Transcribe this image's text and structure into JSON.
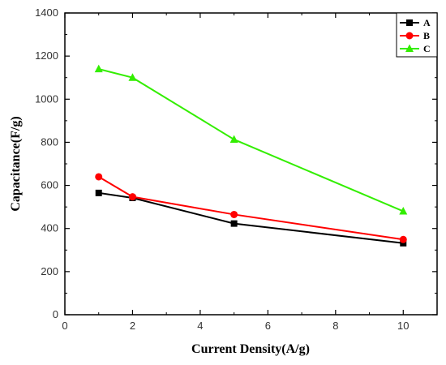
{
  "chart_data": {
    "type": "line",
    "title": "",
    "xlabel": "Current Density(A/g)",
    "ylabel": "Capacitance(F/g)",
    "xlim": [
      0,
      11
    ],
    "ylim": [
      0,
      1400
    ],
    "xticks": [
      0,
      2,
      4,
      6,
      8,
      10
    ],
    "yticks": [
      0,
      200,
      400,
      600,
      800,
      1000,
      1200,
      1400
    ],
    "grid": false,
    "legend_position": "top-right",
    "series": [
      {
        "name": "A",
        "color": "#000000",
        "marker": "square",
        "x": [
          1,
          2,
          5,
          10
        ],
        "y": [
          565,
          542,
          423,
          332
        ]
      },
      {
        "name": "B",
        "color": "#ff0000",
        "marker": "circle",
        "x": [
          1,
          2,
          5,
          10
        ],
        "y": [
          640,
          547,
          465,
          349
        ]
      },
      {
        "name": "C",
        "color": "#33ee00",
        "marker": "triangle",
        "x": [
          1,
          2,
          5,
          10
        ],
        "y": [
          1140,
          1100,
          813,
          480
        ]
      }
    ]
  }
}
